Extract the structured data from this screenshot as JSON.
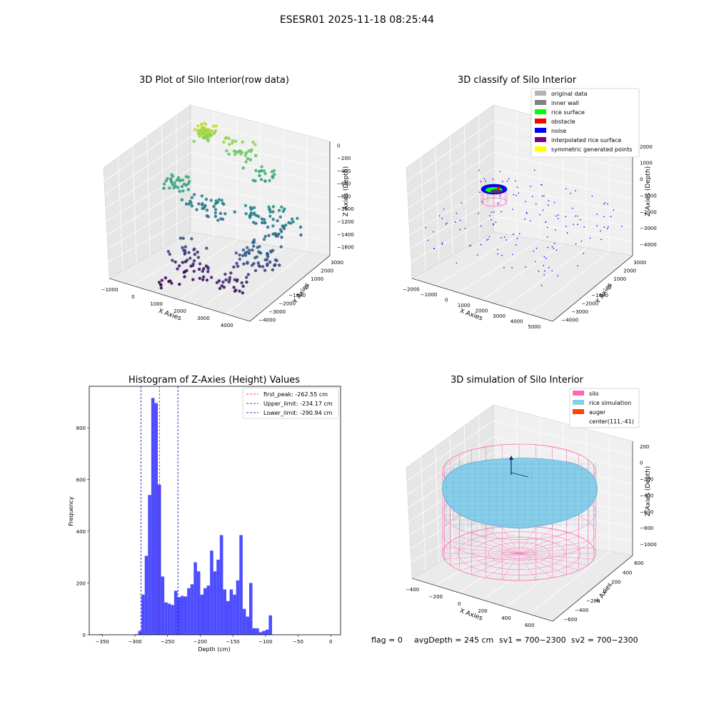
{
  "suptitle": "ESESR01 2025-11-18 08:25:44",
  "footer": {
    "flag": "flag = 0",
    "avg_depth": "avgDepth = 245 cm",
    "sv1": "sv1 = 700~2300",
    "sv2": "sv2 = 700~2300"
  },
  "colors": {
    "hist_bar": "#4d4dff",
    "first_peak_line": "#ff0000",
    "limit_line": "#0000cc",
    "pane_back": "#f0f0f0",
    "pane_side": "#e6e6e6",
    "pane_floor": "#ebebeb",
    "silo": "#ff69b4",
    "rice": "#87ceeb",
    "auger": "#ff4500"
  },
  "chart_data": [
    {
      "type": "scatter3d",
      "title": "3D Plot of Silo Interior(row data)",
      "xlabel": "X Axies",
      "ylabel": "Y Axies",
      "zlabel": "Z Axies (Depth)",
      "xticks": [
        "−1000",
        "0",
        "1000",
        "2000",
        "3000",
        "4000"
      ],
      "yticks": [
        "−4000",
        "−3000",
        "−2000",
        "−1000",
        "0",
        "1000",
        "2000",
        "3000"
      ],
      "zticks": [
        "0",
        "−200",
        "−400",
        "−600",
        "−800",
        "−1000",
        "−1200",
        "−1400",
        "−1600"
      ],
      "xlim": [
        -1200,
        4500
      ],
      "ylim": [
        -4200,
        3500
      ],
      "zlim": [
        -1700,
        100
      ],
      "colormap": "viridis",
      "clusters": [
        {
          "x": [
            -300,
            200
          ],
          "y": [
            1800,
            2800
          ],
          "z": [
            -250,
            -20
          ],
          "n": 60
        },
        {
          "x": [
            600,
            1800
          ],
          "y": [
            2200,
            3000
          ],
          "z": [
            -500,
            -150
          ],
          "n": 30
        },
        {
          "x": [
            -700,
            200
          ],
          "y": [
            -500,
            600
          ],
          "z": [
            -750,
            -550
          ],
          "n": 30
        },
        {
          "x": [
            1800,
            2600
          ],
          "y": [
            2400,
            3000
          ],
          "z": [
            -700,
            -500
          ],
          "n": 20
        },
        {
          "x": [
            0,
            1800
          ],
          "y": [
            -200,
            1000
          ],
          "z": [
            -1050,
            -850
          ],
          "n": 40
        },
        {
          "x": [
            2200,
            4200
          ],
          "y": [
            200,
            1600
          ],
          "z": [
            -1150,
            -750
          ],
          "n": 60
        },
        {
          "x": [
            2800,
            4200
          ],
          "y": [
            -2000,
            -300
          ],
          "z": [
            -1400,
            -1000
          ],
          "n": 60
        },
        {
          "x": [
            500,
            2200
          ],
          "y": [
            -2800,
            -1200
          ],
          "z": [
            -1650,
            -1200
          ],
          "n": 50
        },
        {
          "x": [
            2400,
            3600
          ],
          "y": [
            -3000,
            -1800
          ],
          "z": [
            -1600,
            -1350
          ],
          "n": 25
        },
        {
          "x": [
            500,
            1200
          ],
          "y": [
            -3800,
            -3000
          ],
          "z": [
            -1700,
            -1550
          ],
          "n": 10
        }
      ]
    },
    {
      "type": "scatter3d",
      "title": "3D classify of Silo Interior",
      "xlabel": "X Axies",
      "ylabel": "Y Axies",
      "zlabel": "Z Axies (Depth)",
      "xticks": [
        "−2000",
        "−1000",
        "0",
        "1000",
        "2000",
        "3000",
        "4000",
        "5000"
      ],
      "yticks": [
        "−4000",
        "−3000",
        "−2000",
        "−1000",
        "0",
        "1000",
        "2000",
        "3000"
      ],
      "zticks": [
        "2000",
        "1000",
        "0",
        "−1000",
        "−2000",
        "−3000",
        "−4000"
      ],
      "legend": [
        {
          "label": "original data",
          "color": "#b3b3b3"
        },
        {
          "label": "inner wall",
          "color": "#808080"
        },
        {
          "label": "rice surface",
          "color": "#00ff00"
        },
        {
          "label": "obstacle",
          "color": "#ff0000"
        },
        {
          "label": "noise",
          "color": "#0000ff"
        },
        {
          "label": "interpolated rice surface",
          "color": "#800080"
        },
        {
          "label": "symmetric generated points",
          "color": "#ffff00"
        }
      ]
    },
    {
      "type": "bar",
      "title": "Histogram of Z-Axies (Height) Values",
      "xlabel": "Depth (cm)",
      "ylabel": "Frequency",
      "xlim": [
        -370,
        15
      ],
      "ylim": [
        0,
        960
      ],
      "xticks": [
        "−350",
        "−300",
        "−250",
        "−200",
        "−150",
        "−100",
        "−50",
        "0"
      ],
      "xtick_values": [
        -350,
        -300,
        -250,
        -200,
        -150,
        -100,
        -50,
        0
      ],
      "yticks": [
        0,
        200,
        400,
        600,
        800
      ],
      "bin_width": 5.0,
      "bins": [
        {
          "x": -355,
          "v": 2
        },
        {
          "x": -300,
          "v": 2
        },
        {
          "x": -295,
          "v": 15
        },
        {
          "x": -290,
          "v": 155
        },
        {
          "x": -285,
          "v": 305
        },
        {
          "x": -280,
          "v": 540
        },
        {
          "x": -275,
          "v": 915
        },
        {
          "x": -270,
          "v": 895
        },
        {
          "x": -265,
          "v": 580
        },
        {
          "x": -260,
          "v": 225
        },
        {
          "x": -255,
          "v": 125
        },
        {
          "x": -250,
          "v": 120
        },
        {
          "x": -245,
          "v": 115
        },
        {
          "x": -240,
          "v": 170
        },
        {
          "x": -235,
          "v": 145
        },
        {
          "x": -230,
          "v": 150
        },
        {
          "x": -225,
          "v": 148
        },
        {
          "x": -220,
          "v": 180
        },
        {
          "x": -215,
          "v": 195
        },
        {
          "x": -210,
          "v": 280
        },
        {
          "x": -205,
          "v": 245
        },
        {
          "x": -200,
          "v": 155
        },
        {
          "x": -195,
          "v": 180
        },
        {
          "x": -190,
          "v": 190
        },
        {
          "x": -185,
          "v": 325
        },
        {
          "x": -180,
          "v": 245
        },
        {
          "x": -175,
          "v": 290
        },
        {
          "x": -170,
          "v": 385
        },
        {
          "x": -165,
          "v": 175
        },
        {
          "x": -160,
          "v": 130
        },
        {
          "x": -155,
          "v": 175
        },
        {
          "x": -150,
          "v": 155
        },
        {
          "x": -145,
          "v": 210
        },
        {
          "x": -140,
          "v": 385
        },
        {
          "x": -135,
          "v": 100
        },
        {
          "x": -130,
          "v": 70
        },
        {
          "x": -125,
          "v": 200
        },
        {
          "x": -120,
          "v": 25
        },
        {
          "x": -115,
          "v": 25
        },
        {
          "x": -110,
          "v": 10
        },
        {
          "x": -105,
          "v": 15
        },
        {
          "x": -100,
          "v": 20
        },
        {
          "x": -95,
          "v": 75
        }
      ],
      "vlines": [
        {
          "x": -262.55,
          "label": "first_peak: -262.55 cm",
          "color": "#ff0000"
        },
        {
          "x": -234.17,
          "label": "Upper_limit: -234.17 cm",
          "color": "#0000cc"
        },
        {
          "x": -290.94,
          "label": "Lower_limit: -290.94 cm",
          "color": "#0000cc"
        }
      ]
    },
    {
      "type": "surface3d",
      "title": "3D simulation of Silo Interior",
      "xlabel": "X Axies",
      "ylabel": "Y Axies",
      "zlabel": "Z Axies (Depth)",
      "xticks": [
        "−400",
        "−200",
        "0",
        "200",
        "400",
        "600"
      ],
      "yticks": [
        "−600",
        "−400",
        "−200",
        "0",
        "200",
        "400",
        "600"
      ],
      "zticks": [
        "200",
        "0",
        "−200",
        "−400",
        "−600",
        "−800",
        "−1000"
      ],
      "legend": [
        {
          "label": "silo",
          "color": "#ff69b4"
        },
        {
          "label": "rice simulation",
          "color": "#87ceeb"
        },
        {
          "label": "auger",
          "color": "#ff4500"
        },
        {
          "label": "center(111,-41)",
          "color": ""
        }
      ]
    }
  ]
}
